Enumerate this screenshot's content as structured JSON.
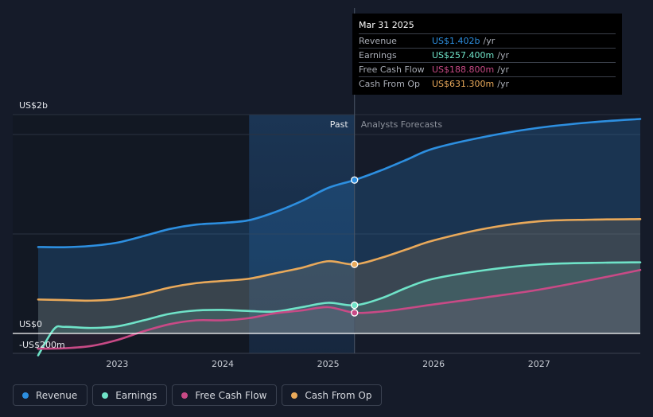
{
  "colors": {
    "revenue": "#2d8fe0",
    "earnings": "#6fe3c8",
    "free_cash_flow": "#c84a86",
    "cash_from_op": "#e9a95a",
    "background": "#151b29"
  },
  "tooltip": {
    "date": "Mar 31 2025",
    "rows": [
      {
        "name": "Revenue",
        "value": "US$1.402b",
        "unit": "/yr",
        "color": "#2d8fe0"
      },
      {
        "name": "Earnings",
        "value": "US$257.400m",
        "unit": "/yr",
        "color": "#6fe3c8"
      },
      {
        "name": "Free Cash Flow",
        "value": "US$188.800m",
        "unit": "/yr",
        "color": "#c84a86"
      },
      {
        "name": "Cash From Op",
        "value": "US$631.300m",
        "unit": "/yr",
        "color": "#e9a95a"
      }
    ]
  },
  "legend": [
    {
      "label": "Revenue",
      "color": "#2d8fe0"
    },
    {
      "label": "Earnings",
      "color": "#6fe3c8"
    },
    {
      "label": "Free Cash Flow",
      "color": "#c84a86"
    },
    {
      "label": "Cash From Op",
      "color": "#e9a95a"
    }
  ],
  "chart_data": {
    "type": "line",
    "title": "",
    "xlabel": "",
    "ylabel": "",
    "y_axis_labels": [
      "US$2b",
      "US$0",
      "-US$200m"
    ],
    "ylim": [
      -200,
      2000
    ],
    "xlim": [
      2022.25,
      2027.96
    ],
    "x_ticks": [
      2023,
      2024,
      2025,
      2026,
      2027
    ],
    "x_tick_labels": [
      "2023",
      "2024",
      "2025",
      "2026",
      "2027"
    ],
    "past_label": "Past",
    "forecast_label": "Analysts Forecasts",
    "past_region_start": 2024.25,
    "divider_x": 2025.25,
    "series": [
      {
        "name": "Revenue",
        "key": "revenue",
        "color": "#2d8fe0",
        "points": [
          [
            2022.25,
            790
          ],
          [
            2022.5,
            788
          ],
          [
            2022.75,
            800
          ],
          [
            2023,
            830
          ],
          [
            2023.25,
            890
          ],
          [
            2023.5,
            955
          ],
          [
            2023.75,
            995
          ],
          [
            2024,
            1010
          ],
          [
            2024.25,
            1035
          ],
          [
            2024.5,
            1110
          ],
          [
            2024.75,
            1210
          ],
          [
            2025,
            1330
          ],
          [
            2025.25,
            1402
          ],
          [
            2025.5,
            1490
          ],
          [
            2025.75,
            1590
          ],
          [
            2026,
            1690
          ],
          [
            2026.5,
            1800
          ],
          [
            2027,
            1880
          ],
          [
            2027.5,
            1930
          ],
          [
            2027.96,
            1960
          ]
        ]
      },
      {
        "name": "Cash From Op",
        "key": "cash_from_op",
        "color": "#e9a95a",
        "points": [
          [
            2022.25,
            310
          ],
          [
            2022.5,
            305
          ],
          [
            2022.75,
            300
          ],
          [
            2023,
            315
          ],
          [
            2023.25,
            360
          ],
          [
            2023.5,
            420
          ],
          [
            2023.75,
            460
          ],
          [
            2024,
            480
          ],
          [
            2024.25,
            500
          ],
          [
            2024.5,
            550
          ],
          [
            2024.75,
            600
          ],
          [
            2025,
            660
          ],
          [
            2025.25,
            631
          ],
          [
            2025.5,
            690
          ],
          [
            2025.75,
            770
          ],
          [
            2026,
            850
          ],
          [
            2026.5,
            960
          ],
          [
            2027,
            1025
          ],
          [
            2027.5,
            1040
          ],
          [
            2027.96,
            1045
          ]
        ]
      },
      {
        "name": "Earnings",
        "key": "earnings",
        "color": "#6fe3c8",
        "points": [
          [
            2022.25,
            -200
          ],
          [
            2022.4,
            40
          ],
          [
            2022.5,
            60
          ],
          [
            2022.75,
            50
          ],
          [
            2023,
            65
          ],
          [
            2023.25,
            120
          ],
          [
            2023.5,
            180
          ],
          [
            2023.75,
            210
          ],
          [
            2024,
            215
          ],
          [
            2024.25,
            205
          ],
          [
            2024.5,
            200
          ],
          [
            2024.75,
            240
          ],
          [
            2025,
            280
          ],
          [
            2025.25,
            257
          ],
          [
            2025.5,
            320
          ],
          [
            2025.75,
            420
          ],
          [
            2026,
            500
          ],
          [
            2026.5,
            580
          ],
          [
            2027,
            630
          ],
          [
            2027.5,
            645
          ],
          [
            2027.96,
            650
          ]
        ]
      },
      {
        "name": "Free Cash Flow",
        "key": "free_cash_flow",
        "color": "#c84a86",
        "points": [
          [
            2022.25,
            -140
          ],
          [
            2022.5,
            -135
          ],
          [
            2022.75,
            -115
          ],
          [
            2023,
            -60
          ],
          [
            2023.25,
            20
          ],
          [
            2023.5,
            85
          ],
          [
            2023.75,
            120
          ],
          [
            2024,
            120
          ],
          [
            2024.25,
            140
          ],
          [
            2024.5,
            185
          ],
          [
            2024.75,
            210
          ],
          [
            2025,
            240
          ],
          [
            2025.25,
            189
          ],
          [
            2025.5,
            200
          ],
          [
            2025.75,
            230
          ],
          [
            2026,
            265
          ],
          [
            2026.5,
            330
          ],
          [
            2027,
            400
          ],
          [
            2027.5,
            490
          ],
          [
            2027.96,
            580
          ]
        ]
      }
    ],
    "highlight_x": 2025.25,
    "highlight_values": {
      "revenue": 1402,
      "earnings": 257.4,
      "free_cash_flow": 188.8,
      "cash_from_op": 631.3
    }
  }
}
